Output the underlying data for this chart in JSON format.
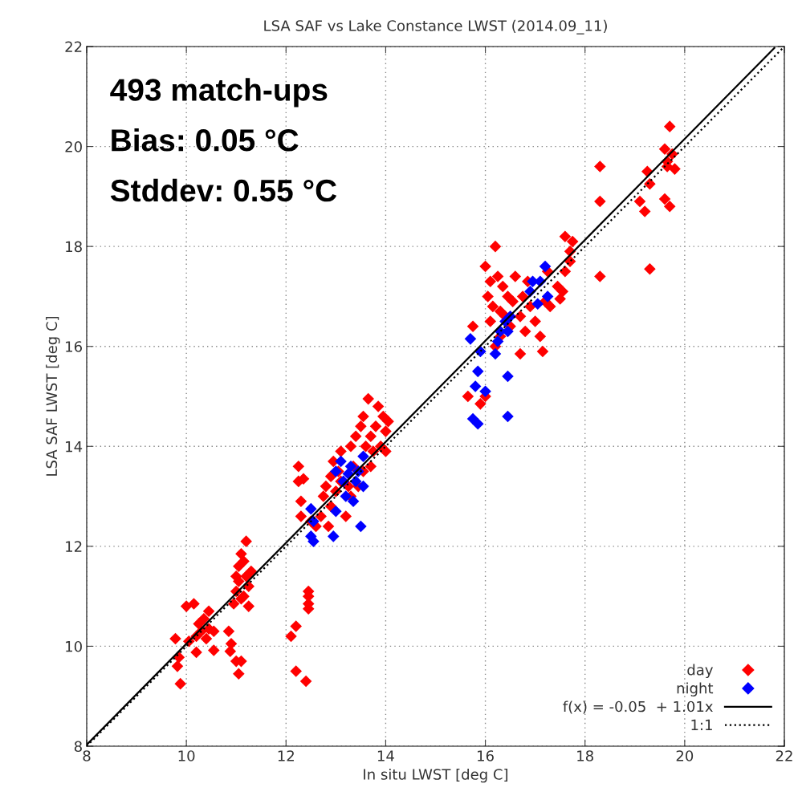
{
  "chart_data": {
    "type": "scatter",
    "title": "LSA SAF vs Lake Constance LWST (2014.09_11)",
    "xlabel": "In situ LWST [deg C]",
    "ylabel": "LSA SAF LWST [deg C]",
    "xlim": [
      8,
      22
    ],
    "ylim": [
      8,
      22
    ],
    "xticks": [
      8,
      10,
      12,
      14,
      16,
      18,
      20,
      22
    ],
    "yticks": [
      8,
      10,
      12,
      14,
      16,
      18,
      20,
      22
    ],
    "grid": true,
    "legend": "bottom right",
    "marker": "diamond",
    "annotations": [
      "493 match-ups",
      "Bias: 0.05 °C",
      "Stddev: 0.55 °C"
    ],
    "series": [
      {
        "name": "day",
        "color": "#ff0000",
        "x": [
          9.78,
          9.82,
          9.85,
          9.88,
          10.0,
          10.05,
          10.15,
          10.2,
          10.2,
          10.25,
          10.3,
          10.35,
          10.4,
          10.45,
          10.45,
          10.55,
          10.55,
          10.85,
          10.9,
          10.88,
          10.95,
          11.0,
          11.05,
          11.1,
          11.0,
          11.05,
          11.05,
          11.1,
          11.15,
          11.15,
          11.2,
          11.2,
          11.25,
          11.25,
          11.3,
          11.0,
          11.1,
          12.1,
          12.2,
          12.2,
          12.4,
          12.45,
          12.45,
          12.45,
          12.45,
          12.25,
          12.25,
          12.3,
          12.3,
          12.35,
          12.5,
          12.6,
          12.7,
          12.75,
          12.8,
          12.85,
          12.9,
          12.95,
          13.0,
          13.05,
          13.1,
          13.2,
          13.25,
          13.3,
          13.35,
          13.4,
          13.45,
          13.5,
          13.55,
          13.6,
          13.65,
          13.7,
          13.75,
          13.8,
          13.85,
          13.9,
          13.95,
          14.0,
          14.05,
          14.0,
          13.7,
          12.9,
          13.1,
          13.3,
          13.55,
          15.65,
          15.75,
          15.9,
          16.0,
          16.0,
          16.05,
          16.1,
          16.15,
          16.2,
          16.25,
          16.3,
          16.35,
          16.4,
          16.45,
          16.5,
          16.55,
          16.6,
          16.7,
          16.75,
          16.7,
          16.8,
          16.85,
          16.9,
          17.0,
          17.1,
          17.15,
          17.2,
          17.25,
          17.3,
          17.45,
          17.5,
          17.55,
          17.6,
          17.6,
          17.7,
          17.75,
          17.7,
          16.2,
          16.3,
          16.1,
          18.3,
          18.3,
          18.3,
          19.1,
          19.2,
          19.25,
          19.3,
          19.3,
          19.6,
          19.65,
          19.65,
          19.6,
          19.7,
          19.7,
          19.75,
          19.8
        ],
        "values": [
          10.15,
          9.6,
          9.78,
          9.25,
          10.8,
          10.1,
          10.85,
          10.2,
          9.88,
          10.45,
          10.3,
          10.55,
          10.15,
          10.35,
          10.7,
          10.3,
          9.92,
          10.3,
          10.05,
          9.9,
          10.85,
          9.7,
          9.45,
          9.7,
          11.1,
          11.3,
          11.6,
          11.85,
          11.0,
          11.7,
          12.1,
          11.4,
          10.8,
          11.2,
          11.5,
          11.4,
          10.95,
          10.2,
          10.4,
          9.5,
          9.3,
          10.75,
          10.85,
          11.0,
          11.1,
          13.6,
          13.3,
          12.9,
          12.6,
          13.35,
          12.5,
          12.4,
          12.6,
          13.0,
          13.2,
          12.4,
          13.4,
          13.7,
          13.1,
          13.5,
          13.9,
          12.6,
          13.2,
          14.0,
          13.6,
          14.2,
          13.2,
          14.4,
          14.6,
          14.0,
          14.95,
          14.2,
          13.9,
          14.4,
          14.8,
          14.0,
          14.6,
          14.3,
          14.5,
          13.9,
          13.6,
          12.8,
          13.3,
          13.0,
          13.5,
          15.0,
          16.4,
          14.85,
          15.0,
          17.6,
          17.0,
          16.5,
          16.8,
          18.0,
          17.4,
          16.2,
          17.2,
          16.6,
          17.0,
          16.4,
          16.9,
          17.4,
          16.6,
          17.0,
          15.85,
          16.3,
          17.3,
          16.8,
          16.5,
          16.2,
          15.9,
          16.9,
          17.5,
          16.8,
          17.2,
          16.95,
          17.1,
          17.5,
          18.2,
          17.7,
          18.1,
          17.9,
          16.0,
          16.7,
          17.3,
          19.6,
          18.9,
          17.4,
          18.9,
          18.7,
          19.5,
          17.55,
          19.25,
          18.95,
          19.6,
          19.7,
          19.95,
          18.8,
          20.4,
          19.85,
          19.55
        ]
      },
      {
        "name": "night",
        "color": "#0000ff",
        "x": [
          12.5,
          12.5,
          12.55,
          12.55,
          12.95,
          13.0,
          13.1,
          13.15,
          13.2,
          13.3,
          13.35,
          13.4,
          13.45,
          13.5,
          13.55,
          13.55,
          13.25,
          13.0,
          15.7,
          15.75,
          15.8,
          15.85,
          15.85,
          15.9,
          16.0,
          16.2,
          16.25,
          16.3,
          16.4,
          16.45,
          16.45,
          16.5,
          16.45,
          16.9,
          17.1,
          17.2,
          17.25,
          17.05,
          16.95
        ],
        "values": [
          12.75,
          12.2,
          12.1,
          12.5,
          12.2,
          13.5,
          13.7,
          13.3,
          13.0,
          13.6,
          12.9,
          13.3,
          13.5,
          12.4,
          13.8,
          13.2,
          13.45,
          12.7,
          16.15,
          14.55,
          15.2,
          14.45,
          15.5,
          15.9,
          15.1,
          15.85,
          16.1,
          16.3,
          16.5,
          15.4,
          14.6,
          16.6,
          16.3,
          17.1,
          17.3,
          17.6,
          17.0,
          16.85,
          17.3
        ]
      },
      {
        "name": "f(x) = -0.05  + 1.01x",
        "type": "line",
        "color": "#000000",
        "line_style": "solid",
        "marker": "none",
        "x": [
          8,
          21.8
        ],
        "values": [
          8.03,
          21.97
        ]
      },
      {
        "name": "1:1",
        "type": "line",
        "color": "#000000",
        "line_style": "dotted",
        "marker": "none",
        "x": [
          8,
          22
        ],
        "values": [
          8,
          22
        ]
      }
    ]
  }
}
